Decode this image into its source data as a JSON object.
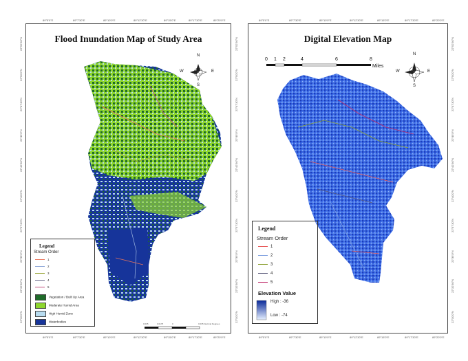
{
  "left_map": {
    "title": "Flood Inundation Map of Study Area",
    "top_ticks": [
      "89°5'0\"E",
      "89°7'30\"E",
      "89°10'0\"E",
      "89°12'30\"E",
      "89°15'0\"E",
      "89°17'30\"E",
      "89°20'0\"E"
    ],
    "bottom_ticks": [
      "89°5'0\"E",
      "89°7'30\"E",
      "89°10'0\"E",
      "89°12'30\"E",
      "89°15'0\"E",
      "89°17'30\"E",
      "89°20'0\"E"
    ],
    "left_ticks": [
      "22°52'30\"N",
      "22°50'0\"N",
      "22°47'30\"N",
      "22°45'0\"N",
      "22°42'30\"N",
      "22°40'0\"N",
      "22°37'30\"N",
      "22°35'0\"N",
      "22°32'30\"N",
      "22°30'0\"N"
    ],
    "right_ticks": [
      "22°52'30\"N",
      "22°50'0\"N",
      "22°47'30\"N",
      "22°45'0\"N",
      "22°42'30\"N",
      "22°40'0\"N",
      "22°37'30\"N",
      "22°35'0\"N",
      "22°32'30\"N",
      "22°30'0\"N"
    ],
    "compass": {
      "n": "N",
      "s": "S",
      "e": "E",
      "w": "W"
    },
    "legend": {
      "title": "Legend",
      "stream_heading": "Stream Order",
      "streams": [
        {
          "label": "1",
          "color": "#e8735a"
        },
        {
          "label": "2",
          "color": "#8fa8d8"
        },
        {
          "label": "3",
          "color": "#9aa63a"
        },
        {
          "label": "4",
          "color": "#6a6a8a"
        },
        {
          "label": "5",
          "color": "#c04a7a"
        }
      ],
      "classes": [
        {
          "label": "Vegetation / Built Up Area",
          "color": "#1f6b2a"
        },
        {
          "label": "Moderate Humid Area",
          "color": "#8ed62e"
        },
        {
          "label": "High Humid Zone",
          "color": "#b8dcf0"
        },
        {
          "label": "Waterbodies",
          "color": "#16349a"
        }
      ]
    },
    "scalebar": {
      "ticks": [
        "0.035",
        "0.0175",
        "0",
        "0.035 Decimal Degrees"
      ]
    }
  },
  "right_map": {
    "title": "Digital Elevation Map",
    "top_ticks": [
      "89°5'0\"E",
      "89°7'30\"E",
      "89°10'0\"E",
      "89°12'30\"E",
      "89°15'0\"E",
      "89°17'30\"E",
      "89°20'0\"E"
    ],
    "bottom_ticks": [
      "89°5'0\"E",
      "89°7'30\"E",
      "89°10'0\"E",
      "89°12'30\"E",
      "89°15'0\"E",
      "89°17'30\"E",
      "89°20'0\"E"
    ],
    "right_ticks": [
      "22°52'30\"N",
      "22°50'0\"N",
      "22°47'30\"N",
      "22°45'0\"N",
      "22°42'30\"N",
      "22°40'0\"N",
      "22°37'30\"N",
      "22°35'0\"N",
      "22°32'30\"N",
      "22°30'0\"N"
    ],
    "scale": {
      "ticks": [
        "0",
        "1",
        "2",
        "4",
        "6",
        "8"
      ],
      "unit": "Miles"
    },
    "compass": {
      "n": "N",
      "s": "S",
      "e": "E",
      "w": "W"
    },
    "legend": {
      "title": "Legend",
      "stream_heading": "Stream Order",
      "streams": [
        {
          "label": "1",
          "color": "#e85a5a"
        },
        {
          "label": "2",
          "color": "#7fa0e0"
        },
        {
          "label": "3",
          "color": "#8aa030"
        },
        {
          "label": "4",
          "color": "#5a5a7a"
        },
        {
          "label": "5",
          "color": "#c02a6a"
        }
      ],
      "elevation_heading": "Elevation Value",
      "high": "High : -36",
      "low": "Low : -74",
      "ramp": {
        "high": "#0a2a9a",
        "low": "#e6f0ff"
      }
    }
  }
}
